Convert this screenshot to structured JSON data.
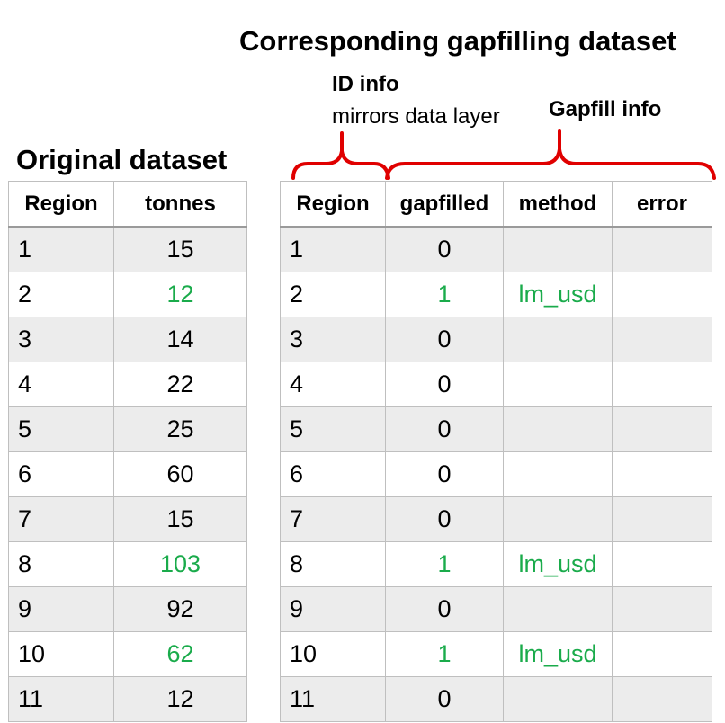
{
  "main_title": "Corresponding gapfilling dataset",
  "original_title": "Original dataset",
  "id_info": {
    "title": "ID info",
    "subtitle": "mirrors data layer"
  },
  "gapfill_info": {
    "title": "Gapfill info"
  },
  "colors": {
    "highlight": "#1aab4b",
    "brace": "#e00000",
    "row_shade": "#ececec"
  },
  "original_table": {
    "headers": [
      "Region",
      "tonnes"
    ],
    "rows": [
      {
        "region": "1",
        "tonnes": "15",
        "gapfilled": false
      },
      {
        "region": "2",
        "tonnes": "12",
        "gapfilled": true
      },
      {
        "region": "3",
        "tonnes": "14",
        "gapfilled": false
      },
      {
        "region": "4",
        "tonnes": "22",
        "gapfilled": false
      },
      {
        "region": "5",
        "tonnes": "25",
        "gapfilled": false
      },
      {
        "region": "6",
        "tonnes": "60",
        "gapfilled": false
      },
      {
        "region": "7",
        "tonnes": "15",
        "gapfilled": false
      },
      {
        "region": "8",
        "tonnes": "103",
        "gapfilled": true
      },
      {
        "region": "9",
        "tonnes": "92",
        "gapfilled": false
      },
      {
        "region": "10",
        "tonnes": "62",
        "gapfilled": true
      },
      {
        "region": "11",
        "tonnes": "12",
        "gapfilled": false
      }
    ]
  },
  "gapfill_table": {
    "headers": [
      "Region",
      "gapfilled",
      "method",
      "error"
    ],
    "rows": [
      {
        "region": "1",
        "gapfilled": "0",
        "method": "",
        "error": ""
      },
      {
        "region": "2",
        "gapfilled": "1",
        "method": "lm_usd",
        "error": ""
      },
      {
        "region": "3",
        "gapfilled": "0",
        "method": "",
        "error": ""
      },
      {
        "region": "4",
        "gapfilled": "0",
        "method": "",
        "error": ""
      },
      {
        "region": "5",
        "gapfilled": "0",
        "method": "",
        "error": ""
      },
      {
        "region": "6",
        "gapfilled": "0",
        "method": "",
        "error": ""
      },
      {
        "region": "7",
        "gapfilled": "0",
        "method": "",
        "error": ""
      },
      {
        "region": "8",
        "gapfilled": "1",
        "method": "lm_usd",
        "error": ""
      },
      {
        "region": "9",
        "gapfilled": "0",
        "method": "",
        "error": ""
      },
      {
        "region": "10",
        "gapfilled": "1",
        "method": "lm_usd",
        "error": ""
      },
      {
        "region": "11",
        "gapfilled": "0",
        "method": "",
        "error": ""
      }
    ]
  }
}
